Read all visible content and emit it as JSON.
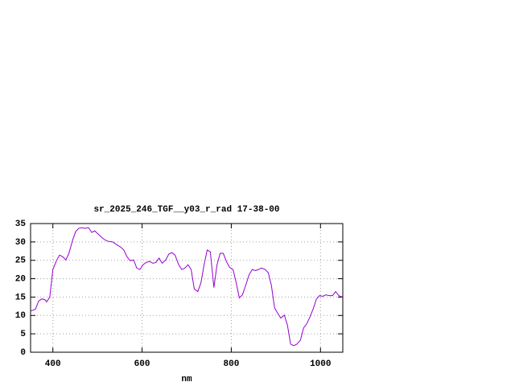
{
  "chart_data": {
    "type": "line",
    "title": "sr_2025_246_TGF__y03_r_rad 17-38-00",
    "x_label": "nm",
    "x": [
      350,
      361,
      368,
      375,
      382,
      386,
      393,
      400,
      408,
      415,
      422,
      429,
      436,
      444,
      451,
      458,
      465,
      472,
      480,
      487,
      494,
      501,
      509,
      516,
      523,
      534,
      545,
      552,
      559,
      566,
      573,
      581,
      588,
      595,
      602,
      609,
      617,
      624,
      631,
      638,
      645,
      653,
      660,
      667,
      674,
      682,
      689,
      696,
      703,
      710,
      717,
      725,
      732,
      739,
      746,
      753,
      761,
      768,
      775,
      782,
      789,
      796,
      804,
      811,
      818,
      825,
      832,
      840,
      847,
      854,
      861,
      868,
      876,
      883,
      890,
      897,
      904,
      911,
      919,
      926,
      933,
      940,
      947,
      955,
      962,
      969,
      976,
      984,
      991,
      998,
      1005,
      1012,
      1019,
      1027,
      1034,
      1041,
      1049
    ],
    "series": [
      {
        "name": "sr_2025_246_TGF__y03_r_rad",
        "color": "#9400d3",
        "values": [
          11.2,
          11.7,
          13.9,
          14.5,
          14.3,
          13.7,
          15,
          22.5,
          24.9,
          26.4,
          26,
          25.1,
          26.9,
          30.4,
          32.8,
          33.7,
          33.9,
          33.7,
          33.9,
          32.6,
          33,
          32.2,
          31.3,
          30.6,
          30.2,
          30,
          29.1,
          28.6,
          27.8,
          26,
          24.9,
          25.1,
          22.9,
          22.5,
          23.8,
          24.4,
          24.7,
          24.2,
          24.4,
          25.6,
          24.2,
          25.1,
          26.7,
          27.1,
          26.4,
          23.8,
          22.5,
          22.9,
          23.8,
          22.5,
          17.2,
          16.5,
          18.9,
          23.8,
          27.8,
          27.3,
          17.6,
          23.8,
          26.9,
          26.9,
          24.7,
          23.1,
          22.5,
          18.9,
          14.8,
          15.6,
          18.1,
          21.1,
          22.5,
          22.2,
          22.5,
          22.9,
          22.5,
          21.6,
          18.1,
          12.1,
          10.6,
          9.3,
          10.1,
          7.3,
          2.2,
          1.8,
          2.2,
          3.3,
          6.6,
          7.7,
          9.5,
          11.9,
          14.5,
          15.4,
          15.2,
          15.6,
          15.4,
          15.4,
          16.5,
          15.4,
          15
        ]
      }
    ],
    "xlim": [
      350,
      1050
    ],
    "ylim": [
      0,
      35
    ],
    "xticks": [
      400,
      600,
      800,
      1000
    ],
    "yticks": [
      0,
      5,
      10,
      15,
      20,
      25,
      30,
      35
    ],
    "grid": true
  }
}
